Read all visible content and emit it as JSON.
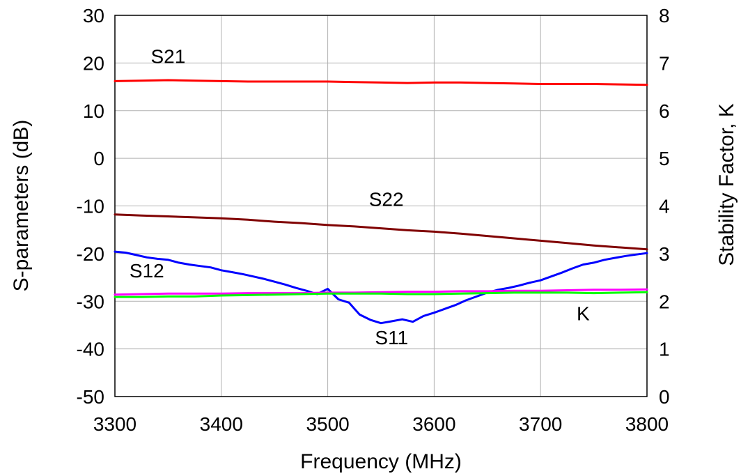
{
  "chart_data": {
    "type": "line",
    "xlabel": "Frequency (MHz)",
    "ylabel": "S-parameters (dB)",
    "y2label": "Stability Factor, K",
    "xlim": [
      3300,
      3800
    ],
    "ylim": [
      -50,
      30
    ],
    "y2lim": [
      0,
      8
    ],
    "x_ticks": [
      3300,
      3400,
      3500,
      3600,
      3700,
      3800
    ],
    "y_ticks": [
      30,
      20,
      10,
      0,
      -10,
      -20,
      -30,
      -40,
      -50
    ],
    "y2_ticks": [
      8,
      7,
      6,
      5,
      4,
      3,
      2,
      1,
      0
    ],
    "grid": true,
    "legend": "none",
    "series": [
      {
        "name": "S21",
        "axis": "left",
        "color": "#ff0000",
        "x": [
          3300,
          3325,
          3350,
          3375,
          3400,
          3425,
          3450,
          3475,
          3500,
          3525,
          3550,
          3575,
          3600,
          3625,
          3650,
          3675,
          3700,
          3725,
          3750,
          3775,
          3800
        ],
        "values": [
          16.2,
          16.3,
          16.4,
          16.3,
          16.2,
          16.1,
          16.1,
          16.1,
          16.1,
          16.0,
          15.9,
          15.8,
          15.9,
          15.9,
          15.8,
          15.7,
          15.6,
          15.6,
          15.6,
          15.5,
          15.4
        ]
      },
      {
        "name": "S22",
        "axis": "left",
        "color": "#800000",
        "x": [
          3300,
          3325,
          3350,
          3375,
          3400,
          3425,
          3450,
          3475,
          3500,
          3525,
          3550,
          3575,
          3600,
          3625,
          3650,
          3675,
          3700,
          3725,
          3750,
          3775,
          3800
        ],
        "values": [
          -11.8,
          -12.0,
          -12.2,
          -12.4,
          -12.6,
          -12.9,
          -13.3,
          -13.6,
          -14.0,
          -14.3,
          -14.7,
          -15.1,
          -15.4,
          -15.8,
          -16.3,
          -16.8,
          -17.3,
          -17.8,
          -18.3,
          -18.7,
          -19.1
        ]
      },
      {
        "name": "S11",
        "axis": "left",
        "color": "#0000ff",
        "x": [
          3300,
          3310,
          3320,
          3330,
          3340,
          3350,
          3360,
          3370,
          3380,
          3390,
          3400,
          3410,
          3420,
          3430,
          3440,
          3450,
          3460,
          3470,
          3480,
          3490,
          3500,
          3510,
          3520,
          3530,
          3540,
          3550,
          3560,
          3570,
          3580,
          3590,
          3600,
          3610,
          3620,
          3630,
          3640,
          3650,
          3660,
          3670,
          3680,
          3690,
          3700,
          3710,
          3720,
          3730,
          3740,
          3750,
          3760,
          3770,
          3780,
          3790,
          3800
        ],
        "values": [
          -19.6,
          -19.8,
          -20.3,
          -20.8,
          -21.1,
          -21.3,
          -21.9,
          -22.3,
          -22.6,
          -22.9,
          -23.5,
          -23.9,
          -24.3,
          -24.8,
          -25.3,
          -25.9,
          -26.5,
          -27.2,
          -27.8,
          -28.5,
          -27.4,
          -29.6,
          -30.3,
          -32.8,
          -33.9,
          -34.6,
          -34.2,
          -33.8,
          -34.3,
          -33.1,
          -32.4,
          -31.6,
          -30.8,
          -29.8,
          -29.0,
          -28.2,
          -27.6,
          -27.2,
          -26.7,
          -26.1,
          -25.6,
          -24.8,
          -24.0,
          -23.1,
          -22.3,
          -21.9,
          -21.3,
          -20.9,
          -20.5,
          -20.2,
          -19.9
        ]
      },
      {
        "name": "S12",
        "axis": "left",
        "color": "#ff00ff",
        "x": [
          3300,
          3325,
          3350,
          3375,
          3400,
          3425,
          3450,
          3475,
          3500,
          3525,
          3550,
          3575,
          3600,
          3625,
          3650,
          3675,
          3700,
          3725,
          3750,
          3775,
          3800
        ],
        "values": [
          -28.6,
          -28.5,
          -28.4,
          -28.4,
          -28.4,
          -28.3,
          -28.3,
          -28.3,
          -28.2,
          -28.2,
          -28.1,
          -28.0,
          -28.0,
          -27.9,
          -27.9,
          -27.8,
          -27.8,
          -27.7,
          -27.6,
          -27.6,
          -27.5
        ]
      },
      {
        "name": "K",
        "axis": "right",
        "color": "#00ff00",
        "x": [
          3300,
          3325,
          3350,
          3375,
          3400,
          3425,
          3450,
          3475,
          3500,
          3525,
          3550,
          3575,
          3600,
          3625,
          3650,
          3675,
          3700,
          3725,
          3750,
          3775,
          3800
        ],
        "values": [
          2.09,
          2.09,
          2.1,
          2.1,
          2.12,
          2.13,
          2.14,
          2.15,
          2.16,
          2.16,
          2.16,
          2.15,
          2.15,
          2.16,
          2.17,
          2.18,
          2.18,
          2.18,
          2.17,
          2.18,
          2.19
        ]
      }
    ],
    "annotations": [
      {
        "text": "S21",
        "x": 3350,
        "y": 20
      },
      {
        "text": "S22",
        "x": 3555,
        "y": -10
      },
      {
        "text": "S12",
        "x": 3330,
        "y": -25
      },
      {
        "text": "S11",
        "x": 3560,
        "y": -39
      },
      {
        "text": "K",
        "x": 3740,
        "y": -34
      }
    ]
  }
}
